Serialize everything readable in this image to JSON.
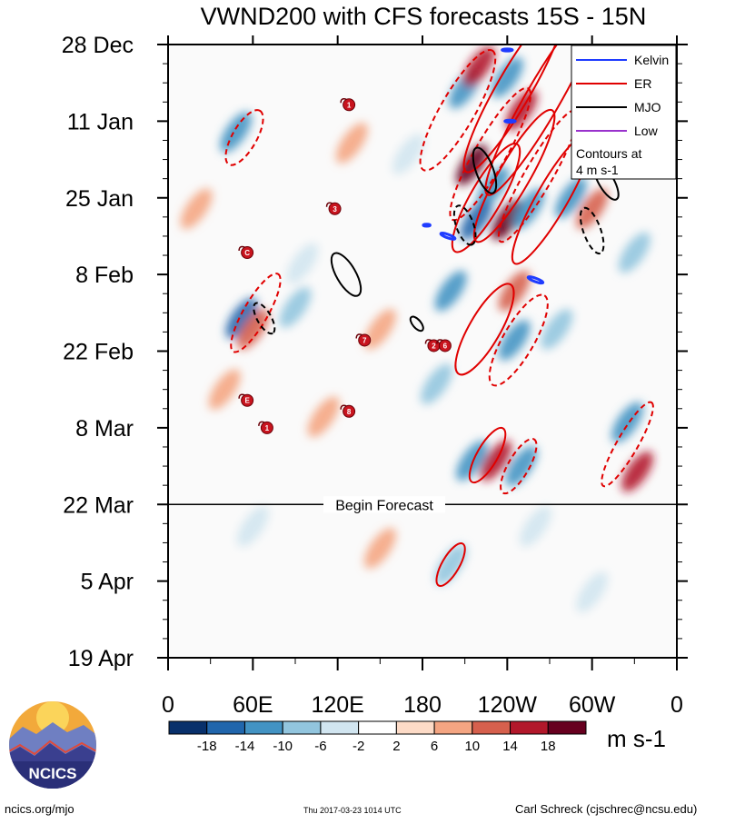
{
  "chart_data": {
    "type": "heatmap",
    "title": "VWND200 with CFS forecasts  15S - 15N",
    "y_ticks": [
      {
        "label": "28 Dec",
        "day": 0
      },
      {
        "label": "11 Jan",
        "day": 14
      },
      {
        "label": "25 Jan",
        "day": 28
      },
      {
        "label": "8 Feb",
        "day": 42
      },
      {
        "label": "22 Feb",
        "day": 56
      },
      {
        "label": "8 Mar",
        "day": 70
      },
      {
        "label": "22 Mar",
        "day": 84
      },
      {
        "label": "5 Apr",
        "day": 98
      },
      {
        "label": "19 Apr",
        "day": 112
      }
    ],
    "x_ticks": [
      {
        "label": "0",
        "lon": 0
      },
      {
        "label": "60E",
        "lon": 60
      },
      {
        "label": "120E",
        "lon": 120
      },
      {
        "label": "180",
        "lon": 180
      },
      {
        "label": "120W",
        "lon": 240
      },
      {
        "label": "60W",
        "lon": 300
      },
      {
        "label": "0",
        "lon": 360
      }
    ],
    "xlim": [
      0,
      360
    ],
    "ylim_days": [
      0,
      112
    ],
    "forecast_start_day": 84,
    "forecast_label": "Begin Forecast",
    "legend": {
      "entries": [
        {
          "name": "Kelvin",
          "color": "#1f3cff"
        },
        {
          "name": "ER",
          "color": "#e00000"
        },
        {
          "name": "MJO",
          "color": "#000000"
        },
        {
          "name": "Low",
          "color": "#9932cc"
        }
      ],
      "note_line1": "Contours at",
      "note_line2": "4 m s-1"
    },
    "colorbar": {
      "unit": "m s-1",
      "tick_labels": [
        "-18",
        "-14",
        "-10",
        "-6",
        "-2",
        "2",
        "6",
        "10",
        "14",
        "18"
      ],
      "colors": [
        "#08306b",
        "#2166ac",
        "#4393c3",
        "#92c5de",
        "#d1e5f0",
        "#ffffff",
        "#fddbc7",
        "#f4a582",
        "#d6604d",
        "#b2182b",
        "#67001f"
      ]
    },
    "anomalies": [
      {
        "lon": 48,
        "day": 16,
        "v": -14
      },
      {
        "lon": 52,
        "day": 50,
        "v": -16
      },
      {
        "lon": 60,
        "day": 52,
        "v": 10
      },
      {
        "lon": 20,
        "day": 30,
        "v": 6
      },
      {
        "lon": 90,
        "day": 48,
        "v": -8
      },
      {
        "lon": 150,
        "day": 52,
        "v": 6
      },
      {
        "lon": 210,
        "day": 8,
        "v": -12
      },
      {
        "lon": 220,
        "day": 4,
        "v": 14
      },
      {
        "lon": 240,
        "day": 6,
        "v": -14
      },
      {
        "lon": 250,
        "day": 12,
        "v": 16
      },
      {
        "lon": 215,
        "day": 22,
        "v": 18
      },
      {
        "lon": 230,
        "day": 26,
        "v": -14
      },
      {
        "lon": 218,
        "day": 32,
        "v": -18
      },
      {
        "lon": 240,
        "day": 32,
        "v": 18
      },
      {
        "lon": 255,
        "day": 30,
        "v": -12
      },
      {
        "lon": 285,
        "day": 28,
        "v": -12
      },
      {
        "lon": 300,
        "day": 30,
        "v": 10
      },
      {
        "lon": 200,
        "day": 45,
        "v": -12
      },
      {
        "lon": 245,
        "day": 45,
        "v": 10
      },
      {
        "lon": 275,
        "day": 52,
        "v": -10
      },
      {
        "lon": 245,
        "day": 54,
        "v": -14
      },
      {
        "lon": 190,
        "day": 62,
        "v": -10
      },
      {
        "lon": 215,
        "day": 76,
        "v": -14
      },
      {
        "lon": 232,
        "day": 76,
        "v": 14
      },
      {
        "lon": 250,
        "day": 77,
        "v": -12
      },
      {
        "lon": 325,
        "day": 69,
        "v": -14
      },
      {
        "lon": 332,
        "day": 78,
        "v": 14
      },
      {
        "lon": 110,
        "day": 68,
        "v": 6
      },
      {
        "lon": 200,
        "day": 95,
        "v": -10
      },
      {
        "lon": 260,
        "day": 88,
        "v": -6
      },
      {
        "lon": 150,
        "day": 92,
        "v": 6
      },
      {
        "lon": 300,
        "day": 100,
        "v": -6
      },
      {
        "lon": 60,
        "day": 88,
        "v": -6
      },
      {
        "lon": 130,
        "day": 18,
        "v": 6
      },
      {
        "lon": 170,
        "day": 20,
        "v": -6
      },
      {
        "lon": 95,
        "day": 40,
        "v": -6
      },
      {
        "lon": 40,
        "day": 63,
        "v": 6
      },
      {
        "lon": 330,
        "day": 38,
        "v": -8
      }
    ],
    "wave_contours": [
      {
        "wave": "ER",
        "dashed": true,
        "lon": 205,
        "day": 12,
        "rx": 20,
        "ry": 5,
        "angle": -60
      },
      {
        "wave": "ER",
        "dashed": true,
        "lon": 228,
        "day": 20,
        "rx": 22,
        "ry": 4.5,
        "angle": -60
      },
      {
        "wave": "ER",
        "dashed": false,
        "lon": 245,
        "day": 8,
        "rx": 28,
        "ry": 5,
        "angle": -60
      },
      {
        "wave": "ER",
        "dashed": false,
        "lon": 265,
        "day": 10,
        "rx": 32,
        "ry": 5,
        "angle": -60
      },
      {
        "wave": "ER",
        "dashed": true,
        "lon": 262,
        "day": 24,
        "rx": 22,
        "ry": 4,
        "angle": -60
      },
      {
        "wave": "ER",
        "dashed": false,
        "lon": 225,
        "day": 28,
        "rx": 18,
        "ry": 4.5,
        "angle": -60
      },
      {
        "wave": "ER",
        "dashed": false,
        "lon": 245,
        "day": 24,
        "rx": 22,
        "ry": 4.5,
        "angle": -60
      },
      {
        "wave": "ER",
        "dashed": false,
        "lon": 272,
        "day": 28,
        "rx": 22,
        "ry": 4.5,
        "angle": -60
      },
      {
        "wave": "ER",
        "dashed": true,
        "lon": 54,
        "day": 17,
        "rx": 9,
        "ry": 3.5,
        "angle": -60
      },
      {
        "wave": "ER",
        "dashed": true,
        "lon": 62,
        "day": 49,
        "rx": 13,
        "ry": 3.5,
        "angle": -60
      },
      {
        "wave": "ER",
        "dashed": false,
        "lon": 224,
        "day": 52,
        "rx": 15,
        "ry": 4.5,
        "angle": -60
      },
      {
        "wave": "ER",
        "dashed": true,
        "lon": 248,
        "day": 54,
        "rx": 15,
        "ry": 4.5,
        "angle": -60
      },
      {
        "wave": "ER",
        "dashed": false,
        "lon": 226,
        "day": 75,
        "rx": 9,
        "ry": 3,
        "angle": -60
      },
      {
        "wave": "ER",
        "dashed": true,
        "lon": 248,
        "day": 77,
        "rx": 9,
        "ry": 3,
        "angle": -60
      },
      {
        "wave": "ER",
        "dashed": true,
        "lon": 325,
        "day": 73,
        "rx": 14,
        "ry": 3,
        "angle": -60
      },
      {
        "wave": "ER",
        "dashed": false,
        "lon": 200,
        "day": 95,
        "rx": 7,
        "ry": 2.5,
        "angle": -60
      },
      {
        "wave": "MJO",
        "dashed": false,
        "lon": 224,
        "day": 23,
        "rx": 7,
        "ry": 2.5,
        "angle": 70
      },
      {
        "wave": "MJO",
        "dashed": true,
        "lon": 210,
        "day": 33,
        "rx": 6,
        "ry": 2.5,
        "angle": 70
      },
      {
        "wave": "MJO",
        "dashed": false,
        "lon": 126,
        "day": 42,
        "rx": 7,
        "ry": 2.8,
        "angle": 60
      },
      {
        "wave": "MJO",
        "dashed": true,
        "lon": 68,
        "day": 50,
        "rx": 5,
        "ry": 2,
        "angle": 60
      },
      {
        "wave": "MJO",
        "dashed": false,
        "lon": 176,
        "day": 51,
        "rx": 2.5,
        "ry": 1.2,
        "angle": 50
      },
      {
        "wave": "MJO",
        "dashed": true,
        "lon": 300,
        "day": 34,
        "rx": 7,
        "ry": 2.5,
        "angle": 70
      },
      {
        "wave": "MJO",
        "dashed": false,
        "lon": 310,
        "day": 25,
        "rx": 6,
        "ry": 2.2,
        "angle": 60
      },
      {
        "wave": "Kelvin",
        "dashed": false,
        "lon": 198,
        "day": 35,
        "rx": 2.2,
        "ry": 0.5,
        "angle": 20
      },
      {
        "wave": "Kelvin",
        "dashed": false,
        "lon": 183,
        "day": 33,
        "rx": 1.0,
        "ry": 0.3,
        "angle": 0
      },
      {
        "wave": "Kelvin",
        "dashed": false,
        "lon": 260,
        "day": 43,
        "rx": 2.3,
        "ry": 0.5,
        "angle": 20
      },
      {
        "wave": "Kelvin",
        "dashed": false,
        "lon": 240,
        "day": 1,
        "rx": 1.5,
        "ry": 0.3,
        "angle": 0
      },
      {
        "wave": "Kelvin",
        "dashed": false,
        "lon": 242,
        "day": 14,
        "rx": 1.5,
        "ry": 0.3,
        "angle": 0
      }
    ],
    "storm_markers": [
      {
        "label": "1",
        "lon": 128,
        "day": 11
      },
      {
        "label": "3",
        "lon": 118,
        "day": 30
      },
      {
        "label": "C",
        "lon": 56,
        "day": 38
      },
      {
        "label": "7",
        "lon": 139,
        "day": 54
      },
      {
        "label": "2",
        "lon": 188,
        "day": 55
      },
      {
        "label": "6",
        "lon": 196,
        "day": 55
      },
      {
        "label": "E",
        "lon": 56,
        "day": 65
      },
      {
        "label": "8",
        "lon": 128,
        "day": 67
      },
      {
        "label": "1",
        "lon": 70,
        "day": 70
      }
    ]
  },
  "logo": {
    "text": "NCICS"
  },
  "footer": {
    "website": "ncics.org/mjo",
    "timestamp": "Thu 2017-03-23 1014 UTC",
    "author": "Carl Schreck (cjschrec@ncsu.edu)"
  }
}
